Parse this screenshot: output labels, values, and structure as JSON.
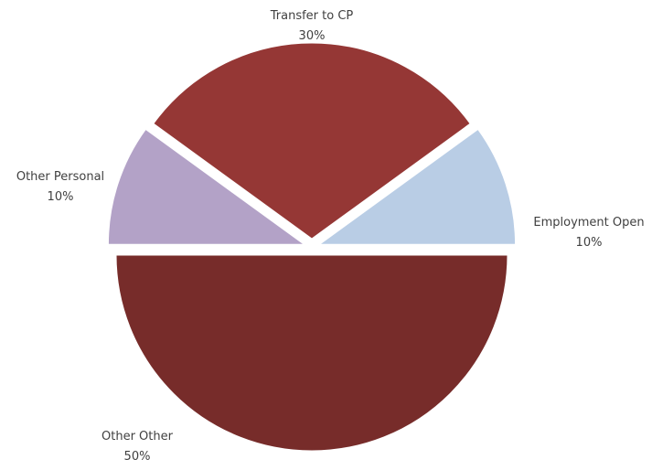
{
  "chart_data": {
    "type": "pie",
    "title": "",
    "slices": [
      {
        "label": "Transfer to CP",
        "value": 30,
        "percent_label": "30%",
        "color": "#953735",
        "exploded": true
      },
      {
        "label": "Employment Open",
        "value": 10,
        "percent_label": "10%",
        "color": "#b9cde5",
        "exploded": true
      },
      {
        "label": "Other Other",
        "value": 50,
        "percent_label": "50%",
        "color": "#772c2a",
        "exploded": true
      },
      {
        "label": "Other Personal",
        "value": 10,
        "percent_label": "10%",
        "color": "#b3a2c7",
        "exploded": true
      }
    ],
    "legend": "none",
    "label_position": "outside"
  }
}
